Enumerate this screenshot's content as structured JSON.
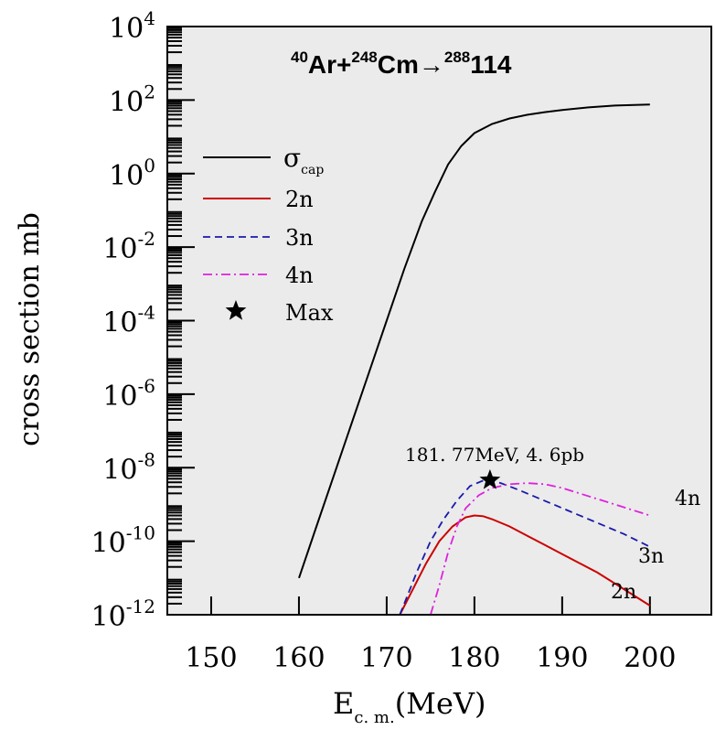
{
  "chart_data": {
    "type": "line",
    "title": {
      "a_mass": "40",
      "a_sym": "Ar+",
      "b_mass": "248",
      "b_sym": "Cm",
      "arrow": "→",
      "c_mass": "288",
      "c_sym": "114"
    },
    "xlabel": {
      "main": "E",
      "sub": "c. m.",
      "unit": "(MeV)"
    },
    "ylabel": "cross section  mb",
    "xlim": [
      145,
      207
    ],
    "ylim_log10": [
      -12,
      4
    ],
    "xticks": [
      "150",
      "160",
      "170",
      "180",
      "190",
      "200"
    ],
    "xtick_values": [
      150,
      160,
      170,
      180,
      190,
      200
    ],
    "yticks": [
      {
        "base": "10",
        "exp": "4",
        "value": 4
      },
      {
        "base": "10",
        "exp": "2",
        "value": 2
      },
      {
        "base": "10",
        "exp": "0",
        "value": 0
      },
      {
        "base": "10",
        "exp": "-2",
        "value": -2
      },
      {
        "base": "10",
        "exp": "-4",
        "value": -4
      },
      {
        "base": "10",
        "exp": "-6",
        "value": -6
      },
      {
        "base": "10",
        "exp": "-8",
        "value": -8
      },
      {
        "base": "10",
        "exp": "-10",
        "value": -10
      },
      {
        "base": "10",
        "exp": "-12",
        "value": -12
      }
    ],
    "colors": {
      "background": "#ebebeb",
      "cap": "#000000",
      "n2": "#cc0000",
      "n3": "#1a1aaa",
      "n4": "#dd22dd"
    },
    "series": [
      {
        "name": "cap",
        "label": "σ",
        "label_sub": "cap",
        "style": "solid",
        "x": [
          160,
          162,
          164,
          166,
          168,
          170,
          172,
          174,
          175.5,
          177,
          178.5,
          180,
          182,
          184,
          186,
          188,
          190,
          193,
          196,
          200
        ],
        "log10_y": [
          -11,
          -9.6,
          -8.2,
          -6.8,
          -5.4,
          -4.0,
          -2.6,
          -1.3,
          -0.5,
          0.25,
          0.75,
          1.1,
          1.35,
          1.5,
          1.6,
          1.67,
          1.73,
          1.8,
          1.85,
          1.88
        ]
      },
      {
        "name": "2n",
        "label": "2n",
        "style": "solid",
        "x": [
          171.5,
          173,
          174.5,
          176,
          177.5,
          179,
          180,
          181,
          182,
          184,
          186,
          188,
          190,
          192,
          194,
          196,
          198,
          200
        ],
        "log10_y": [
          -12,
          -11.3,
          -10.6,
          -10.0,
          -9.6,
          -9.35,
          -9.3,
          -9.32,
          -9.4,
          -9.6,
          -9.85,
          -10.1,
          -10.35,
          -10.6,
          -10.85,
          -11.15,
          -11.45,
          -11.75
        ]
      },
      {
        "name": "3n",
        "label": "3n",
        "style": "dash",
        "x": [
          171.5,
          172.5,
          173.5,
          175,
          176.5,
          178,
          179.5,
          181,
          182,
          183,
          185,
          188,
          191,
          194,
          197,
          200
        ],
        "log10_y": [
          -12,
          -11.4,
          -10.8,
          -10.0,
          -9.4,
          -8.9,
          -8.5,
          -8.35,
          -8.35,
          -8.42,
          -8.6,
          -8.9,
          -9.2,
          -9.5,
          -9.8,
          -10.15
        ]
      },
      {
        "name": "4n",
        "label": "4n",
        "style": "dashdot",
        "x": [
          175,
          176,
          177,
          178,
          179,
          180.5,
          182,
          184,
          186,
          188,
          190,
          192,
          194,
          196,
          198,
          200
        ],
        "log10_y": [
          -12,
          -11.2,
          -10.3,
          -9.6,
          -9.1,
          -8.75,
          -8.55,
          -8.45,
          -8.42,
          -8.45,
          -8.55,
          -8.7,
          -8.85,
          -9.0,
          -9.15,
          -9.3
        ]
      }
    ],
    "max_point": {
      "label": "Max",
      "x": 181.77,
      "log10_y": -8.34
    },
    "annotations": {
      "max_text": "181. 77MeV, 4. 6pb",
      "curve_4n": "4n",
      "curve_3n": "3n",
      "curve_2n": "2n"
    },
    "legend": {
      "position": "top-left",
      "entries": [
        {
          "series": "cap",
          "label": "σ",
          "sub": "cap"
        },
        {
          "series": "2n",
          "label": "2n"
        },
        {
          "series": "3n",
          "label": "3n"
        },
        {
          "series": "4n",
          "label": "4n"
        },
        {
          "series": "max",
          "label": "Max"
        }
      ]
    }
  }
}
